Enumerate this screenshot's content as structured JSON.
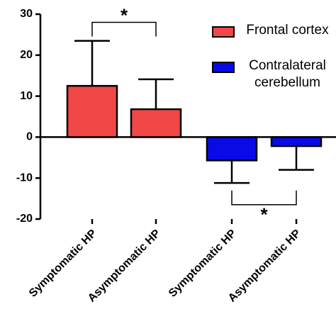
{
  "chart_data": {
    "type": "bar",
    "categories": [
      "Symptomatic HP",
      "Asymptomatic HP",
      "Symptomatic HP",
      "Asymptomatic HP"
    ],
    "series": [
      {
        "name": "Frontal cortex",
        "color": "#f24747",
        "values": [
          12.5,
          6.8,
          null,
          null
        ],
        "errors": [
          11,
          7.3,
          null,
          null
        ]
      },
      {
        "name": "Contralateral cerebellum",
        "color": "#0a0ae6",
        "values": [
          null,
          null,
          -5.7,
          -2.2
        ],
        "errors": [
          null,
          null,
          5.5,
          5.8
        ]
      }
    ],
    "ylim": [
      -20,
      30
    ],
    "yticks": [
      -20,
      -10,
      0,
      10,
      20,
      30
    ],
    "annotations": [
      {
        "text": "*",
        "between": [
          0,
          1
        ],
        "side": "top",
        "y": 28
      },
      {
        "text": "*",
        "between": [
          2,
          3
        ],
        "side": "bottom",
        "y": -16.5
      }
    ]
  }
}
